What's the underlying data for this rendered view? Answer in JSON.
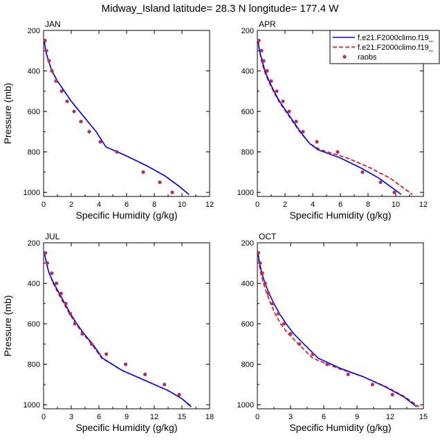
{
  "figure": {
    "title": "Midway_Island  latitude= 28.3 N longitude= 177.4 W"
  },
  "legend": {
    "placement": "top-right of APR panel",
    "entries": [
      {
        "label": "f.e21.F2000climo.f19_",
        "color": "#0000ff",
        "style": "solid"
      },
      {
        "label": "f.e21.F2000climo.f19_",
        "color": "#ff0000",
        "style": "dashed"
      },
      {
        "label": "raobs",
        "color": "#b03060",
        "style": "dot"
      }
    ]
  },
  "chart_data": [
    {
      "type": "line",
      "panel": "JAN",
      "xlabel": "Specific Humidity (g/kg)",
      "ylabel": "Pressure (mb)",
      "xlim": [
        0,
        12
      ],
      "ylim": [
        1020,
        200
      ],
      "xticks": [
        0,
        2,
        4,
        6,
        8,
        10,
        12
      ],
      "yticks": [
        200,
        400,
        600,
        800,
        1000
      ],
      "series": [
        {
          "name": "f.e21.F2000climo.f19_",
          "color": "#0000ff",
          "dash": false,
          "x": [
            0.05,
            0.15,
            0.35,
            0.6,
            1.0,
            1.5,
            2.0,
            2.6,
            3.2,
            3.8,
            4.5,
            6.0,
            7.5,
            8.8,
            9.8,
            10.5
          ],
          "y": [
            250,
            300,
            350,
            400,
            450,
            500,
            550,
            600,
            650,
            700,
            775,
            820,
            870,
            920,
            970,
            1010
          ]
        },
        {
          "name": "f.e21.F2000climo.f19_",
          "color": "#ff0000",
          "dash": true,
          "x": [
            0.05,
            0.15,
            0.35,
            0.6,
            1.0,
            1.5,
            2.0,
            2.6,
            3.2,
            3.8,
            4.5,
            6.0,
            7.5,
            8.8,
            9.8,
            10.5
          ],
          "y": [
            250,
            300,
            350,
            400,
            450,
            500,
            550,
            600,
            650,
            700,
            775,
            820,
            870,
            920,
            970,
            1010
          ]
        },
        {
          "name": "raobs",
          "color": "#b03060",
          "marker": "dot",
          "x": [
            0.1,
            0.2,
            0.4,
            0.6,
            0.9,
            1.3,
            1.7,
            2.2,
            2.7,
            3.3,
            4.1,
            5.3,
            7.2,
            8.4,
            9.3
          ],
          "y": [
            250,
            300,
            350,
            400,
            450,
            500,
            550,
            600,
            650,
            700,
            750,
            800,
            900,
            950,
            1000
          ]
        }
      ]
    },
    {
      "type": "line",
      "panel": "APR",
      "xlabel": "Specific Humidity (g/kg)",
      "ylabel": "Pressure (mb)",
      "xlim": [
        0,
        12
      ],
      "ylim": [
        1020,
        200
      ],
      "xticks": [
        0,
        2,
        4,
        6,
        8,
        10,
        12
      ],
      "yticks": [
        200,
        400,
        600,
        800,
        1000
      ],
      "series": [
        {
          "name": "f.e21.F2000climo.f19_",
          "color": "#0000ff",
          "dash": false,
          "x": [
            0.05,
            0.15,
            0.35,
            0.55,
            0.85,
            1.2,
            1.6,
            2.1,
            2.6,
            3.1,
            3.8,
            4.4,
            6.0,
            7.5,
            8.8,
            9.8,
            10.4
          ],
          "y": [
            250,
            300,
            350,
            400,
            450,
            500,
            550,
            600,
            650,
            700,
            760,
            790,
            830,
            880,
            930,
            980,
            1010
          ]
        },
        {
          "name": "f.e21.F2000climo.f19_",
          "color": "#ff0000",
          "dash": true,
          "x": [
            0.05,
            0.15,
            0.3,
            0.5,
            0.8,
            1.15,
            1.55,
            2.05,
            2.55,
            3.05,
            3.8,
            4.6,
            6.5,
            8.2,
            9.6,
            10.6,
            11.2
          ],
          "y": [
            250,
            300,
            350,
            400,
            450,
            500,
            550,
            600,
            650,
            700,
            760,
            790,
            830,
            880,
            930,
            980,
            1010
          ]
        },
        {
          "name": "raobs",
          "color": "#b03060",
          "marker": "dot",
          "x": [
            0.1,
            0.3,
            0.45,
            0.7,
            1.0,
            1.4,
            1.85,
            2.3,
            2.8,
            3.3,
            4.3,
            5.8,
            7.6,
            8.9,
            9.9
          ],
          "y": [
            250,
            300,
            350,
            400,
            450,
            500,
            550,
            600,
            650,
            700,
            750,
            800,
            900,
            950,
            1000
          ]
        }
      ]
    },
    {
      "type": "line",
      "panel": "JUL",
      "xlabel": "Specific Humidity (g/kg)",
      "ylabel": "Pressure (mb)",
      "xlim": [
        0,
        18
      ],
      "ylim": [
        1020,
        200
      ],
      "xticks": [
        0,
        3,
        6,
        9,
        12,
        15,
        18
      ],
      "yticks": [
        200,
        400,
        600,
        800,
        1000
      ],
      "series": [
        {
          "name": "f.e21.F2000climo.f19_",
          "color": "#0000ff",
          "dash": false,
          "x": [
            0.1,
            0.3,
            0.6,
            1.1,
            1.7,
            2.3,
            2.9,
            3.6,
            4.4,
            5.3,
            6.4,
            8.5,
            11.0,
            13.5,
            15.0,
            16.0
          ],
          "y": [
            250,
            300,
            350,
            400,
            450,
            500,
            550,
            600,
            650,
            700,
            770,
            830,
            880,
            930,
            970,
            1010
          ]
        },
        {
          "name": "f.e21.F2000climo.f19_",
          "color": "#ff0000",
          "dash": true,
          "x": [
            0.1,
            0.3,
            0.6,
            1.05,
            1.6,
            2.2,
            2.8,
            3.5,
            4.3,
            5.2,
            6.3,
            8.5,
            11.0,
            13.5,
            15.0,
            16.1
          ],
          "y": [
            250,
            300,
            350,
            400,
            450,
            500,
            550,
            600,
            650,
            700,
            770,
            830,
            880,
            930,
            970,
            1010
          ]
        },
        {
          "name": "raobs",
          "color": "#b03060",
          "marker": "dot",
          "x": [
            0.2,
            0.4,
            0.9,
            1.4,
            1.9,
            2.4,
            2.9,
            3.4,
            4.2,
            5.2,
            6.8,
            8.9,
            11.0,
            13.1,
            14.7
          ],
          "y": [
            250,
            300,
            350,
            400,
            450,
            500,
            550,
            600,
            650,
            700,
            750,
            800,
            850,
            900,
            950
          ]
        }
      ]
    },
    {
      "type": "line",
      "panel": "OCT",
      "xlabel": "Specific Humidity (g/kg)",
      "ylabel": "Pressure (mb)",
      "xlim": [
        0,
        15
      ],
      "ylim": [
        1020,
        200
      ],
      "xticks": [
        0,
        3,
        6,
        9,
        12,
        15
      ],
      "yticks": [
        200,
        400,
        600,
        800,
        1000
      ],
      "series": [
        {
          "name": "f.e21.F2000climo.f19_",
          "color": "#0000ff",
          "dash": false,
          "x": [
            0.05,
            0.2,
            0.4,
            0.7,
            1.05,
            1.5,
            2.0,
            2.6,
            3.3,
            4.2,
            5.5,
            7.5,
            9.5,
            11.5,
            13.2,
            14.4
          ],
          "y": [
            250,
            300,
            350,
            400,
            450,
            500,
            550,
            600,
            650,
            700,
            770,
            820,
            860,
            910,
            960,
            1010
          ]
        },
        {
          "name": "f.e21.F2000climo.f19_",
          "color": "#ff0000",
          "dash": true,
          "x": [
            0.05,
            0.15,
            0.3,
            0.55,
            0.85,
            1.2,
            1.6,
            2.1,
            2.8,
            3.7,
            5.0,
            7.3,
            9.5,
            11.6,
            13.3,
            14.6
          ],
          "y": [
            250,
            300,
            350,
            400,
            450,
            500,
            550,
            600,
            650,
            700,
            770,
            820,
            860,
            910,
            960,
            1010
          ]
        },
        {
          "name": "raobs",
          "color": "#b03060",
          "marker": "dot",
          "x": [
            0.1,
            0.25,
            0.45,
            0.7,
            1.0,
            1.4,
            1.9,
            2.4,
            3.0,
            3.8,
            5.0,
            6.3,
            8.2,
            10.4,
            12.2
          ],
          "y": [
            250,
            300,
            350,
            400,
            450,
            500,
            550,
            600,
            650,
            700,
            750,
            800,
            850,
            900,
            950
          ]
        }
      ]
    }
  ]
}
